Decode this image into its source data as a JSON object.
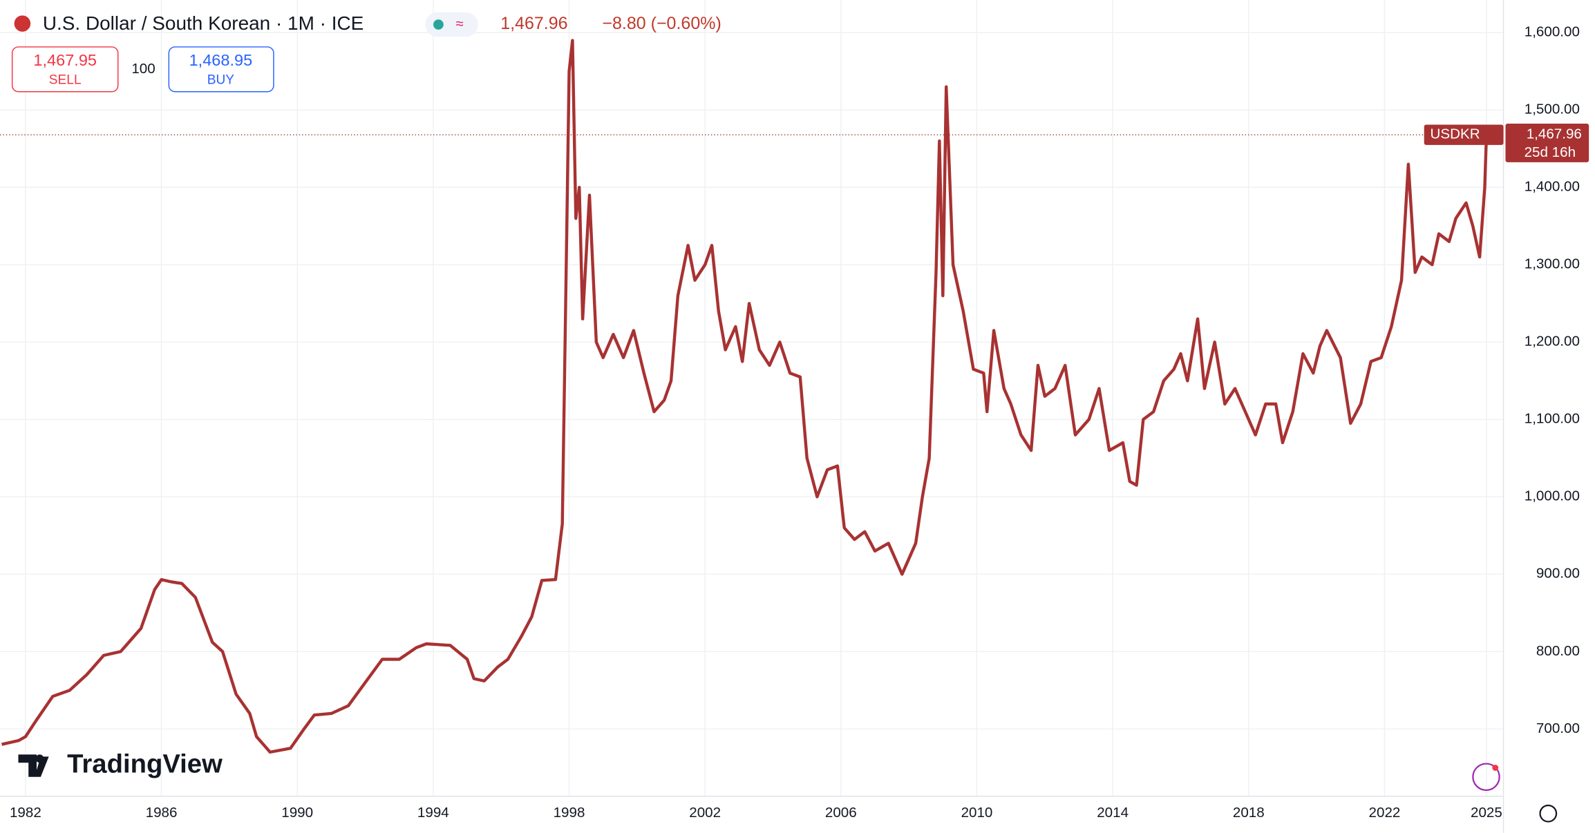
{
  "header": {
    "title": "U.S. Dollar / South Korean · 1M · ICE",
    "last": "1,467.96",
    "change": "−8.80 (−0.60%)",
    "sell_price": "1,467.95",
    "sell_label": "SELL",
    "quantity": "100",
    "buy_price": "1,468.95",
    "buy_label": "BUY"
  },
  "logo": "TradingView",
  "chart_data": {
    "type": "line",
    "grid": true,
    "xlim": [
      1981.25,
      2025.5
    ],
    "ylim": [
      613,
      1642
    ],
    "xticks": [
      1982,
      1986,
      1990,
      1994,
      1998,
      2002,
      2006,
      2010,
      2014,
      2018,
      2022,
      2025
    ],
    "yticks": [
      {
        "value": 700,
        "label": "700.00"
      },
      {
        "value": 800,
        "label": "800.00"
      },
      {
        "value": 900,
        "label": "900.00"
      },
      {
        "value": 1000,
        "label": "1,000.00"
      },
      {
        "value": 1100,
        "label": "1,100.00"
      },
      {
        "value": 1200,
        "label": "1,200.00"
      },
      {
        "value": 1300,
        "label": "1,300.00"
      },
      {
        "value": 1400,
        "label": "1,400.00"
      },
      {
        "value": 1500,
        "label": "1,500.00"
      },
      {
        "value": 1600,
        "label": "1,600.00"
      }
    ],
    "last_price": {
      "value": 1467.96,
      "label": "1,467.96"
    },
    "countdown": "25d 16h",
    "series": [
      {
        "name": "USDKR",
        "color": "#a83232",
        "x": [
          1981.3,
          1981.8,
          1982.0,
          1982.3,
          1982.8,
          1983.3,
          1983.8,
          1984.3,
          1984.8,
          1985.0,
          1985.4,
          1985.8,
          1986.0,
          1986.3,
          1986.6,
          1987.0,
          1987.5,
          1987.8,
          1988.2,
          1988.6,
          1988.8,
          1989.2,
          1989.8,
          1990.2,
          1990.5,
          1991.0,
          1991.5,
          1992.0,
          1992.5,
          1993.0,
          1993.5,
          1993.8,
          1994.5,
          1995.0,
          1995.2,
          1995.5,
          1995.9,
          1996.2,
          1996.6,
          1996.9,
          1997.2,
          1997.6,
          1997.8,
          1997.9,
          1998.0,
          1998.1,
          1998.2,
          1998.3,
          1998.4,
          1998.6,
          1998.8,
          1999.0,
          1999.3,
          1999.6,
          1999.9,
          2000.2,
          2000.5,
          2000.8,
          2001.0,
          2001.2,
          2001.5,
          2001.7,
          2002.0,
          2002.2,
          2002.4,
          2002.6,
          2002.9,
          2003.1,
          2003.3,
          2003.6,
          2003.9,
          2004.2,
          2004.5,
          2004.8,
          2005.0,
          2005.3,
          2005.6,
          2005.9,
          2006.1,
          2006.4,
          2006.7,
          2007.0,
          2007.4,
          2007.8,
          2008.2,
          2008.4,
          2008.6,
          2008.8,
          2008.9,
          2009.0,
          2009.1,
          2009.3,
          2009.6,
          2009.9,
          2010.2,
          2010.3,
          2010.5,
          2010.8,
          2011.0,
          2011.3,
          2011.6,
          2011.8,
          2012.0,
          2012.3,
          2012.6,
          2012.9,
          2013.3,
          2013.6,
          2013.9,
          2014.3,
          2014.5,
          2014.7,
          2014.9,
          2015.2,
          2015.5,
          2015.8,
          2016.0,
          2016.2,
          2016.5,
          2016.7,
          2017.0,
          2017.3,
          2017.6,
          2017.9,
          2018.2,
          2018.5,
          2018.8,
          2019.0,
          2019.3,
          2019.6,
          2019.9,
          2020.1,
          2020.3,
          2020.7,
          2021.0,
          2021.3,
          2021.6,
          2021.9,
          2022.2,
          2022.5,
          2022.7,
          2022.9,
          2023.1,
          2023.4,
          2023.6,
          2023.9,
          2024.1,
          2024.4,
          2024.6,
          2024.8,
          2024.95,
          2025.0
        ],
        "values": [
          680,
          685,
          690,
          710,
          742,
          750,
          770,
          795,
          800,
          810,
          830,
          880,
          893,
          890,
          888,
          870,
          812,
          800,
          745,
          720,
          690,
          670,
          675,
          700,
          718,
          720,
          730,
          760,
          790,
          790,
          805,
          810,
          808,
          790,
          765,
          762,
          780,
          790,
          820,
          845,
          892,
          893,
          965,
          1250,
          1550,
          1590,
          1360,
          1400,
          1230,
          1390,
          1200,
          1180,
          1210,
          1180,
          1215,
          1160,
          1110,
          1125,
          1150,
          1260,
          1325,
          1280,
          1300,
          1325,
          1240,
          1190,
          1220,
          1175,
          1250,
          1190,
          1170,
          1200,
          1160,
          1155,
          1050,
          1000,
          1035,
          1040,
          960,
          945,
          955,
          930,
          940,
          900,
          940,
          1000,
          1050,
          1290,
          1460,
          1260,
          1530,
          1300,
          1240,
          1165,
          1160,
          1110,
          1215,
          1140,
          1120,
          1080,
          1060,
          1170,
          1130,
          1140,
          1170,
          1080,
          1100,
          1140,
          1060,
          1070,
          1020,
          1015,
          1100,
          1110,
          1150,
          1165,
          1185,
          1150,
          1230,
          1140,
          1200,
          1120,
          1140,
          1110,
          1080,
          1120,
          1120,
          1070,
          1110,
          1185,
          1160,
          1195,
          1215,
          1180,
          1095,
          1120,
          1175,
          1180,
          1220,
          1280,
          1430,
          1290,
          1310,
          1300,
          1340,
          1330,
          1360,
          1380,
          1350,
          1310,
          1400,
          1467.96
        ]
      }
    ]
  }
}
